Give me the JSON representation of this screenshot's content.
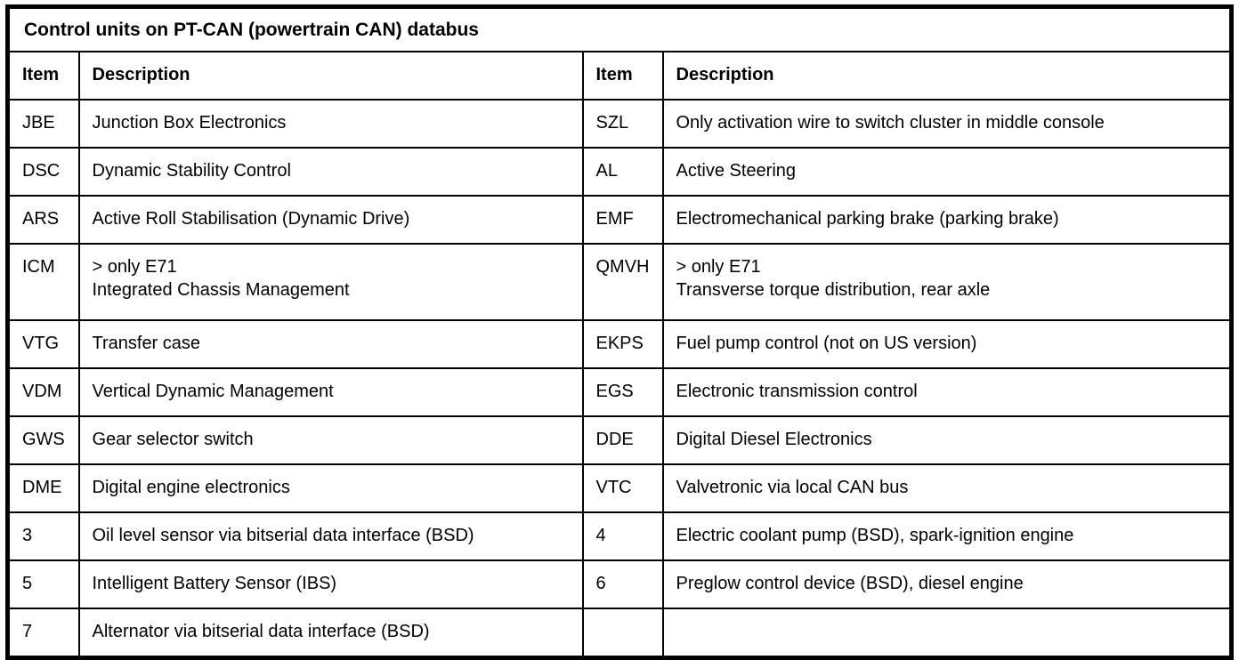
{
  "table": {
    "title": "Control units on PT-CAN (powertrain CAN) databus",
    "headers": [
      "Item",
      "Description",
      "Item",
      "Description"
    ],
    "rows": [
      [
        "JBE",
        "Junction Box Electronics",
        "SZL",
        "Only activation wire to switch cluster in middle console"
      ],
      [
        "DSC",
        "Dynamic Stability Control",
        "AL",
        "Active Steering"
      ],
      [
        "ARS",
        "Active Roll Stabilisation (Dynamic Drive)",
        "EMF",
        "Electromechanical parking brake (parking brake)"
      ],
      [
        "ICM",
        "> only E71\nIntegrated Chassis Management",
        "QMVH",
        "> only E71\nTransverse torque distribution, rear axle"
      ],
      [
        "VTG",
        "Transfer case",
        "EKPS",
        "Fuel pump control (not on US version)"
      ],
      [
        "VDM",
        "Vertical Dynamic Management",
        "EGS",
        "Electronic transmission control"
      ],
      [
        "GWS",
        "Gear selector switch",
        "DDE",
        "Digital Diesel Electronics"
      ],
      [
        "DME",
        "Digital engine electronics",
        "VTC",
        "Valvetronic via local CAN bus"
      ],
      [
        "3",
        "Oil level sensor via bitserial data interface (BSD)",
        "4",
        "Electric coolant pump (BSD), spark-ignition engine"
      ],
      [
        "5",
        "Intelligent Battery Sensor (IBS)",
        "6",
        "Preglow control device (BSD), diesel engine"
      ],
      [
        "7",
        "Alternator via bitserial data interface (BSD)",
        "",
        ""
      ]
    ]
  },
  "colors": {
    "border": "#000000",
    "background": "#ffffff",
    "text": "#000000"
  }
}
